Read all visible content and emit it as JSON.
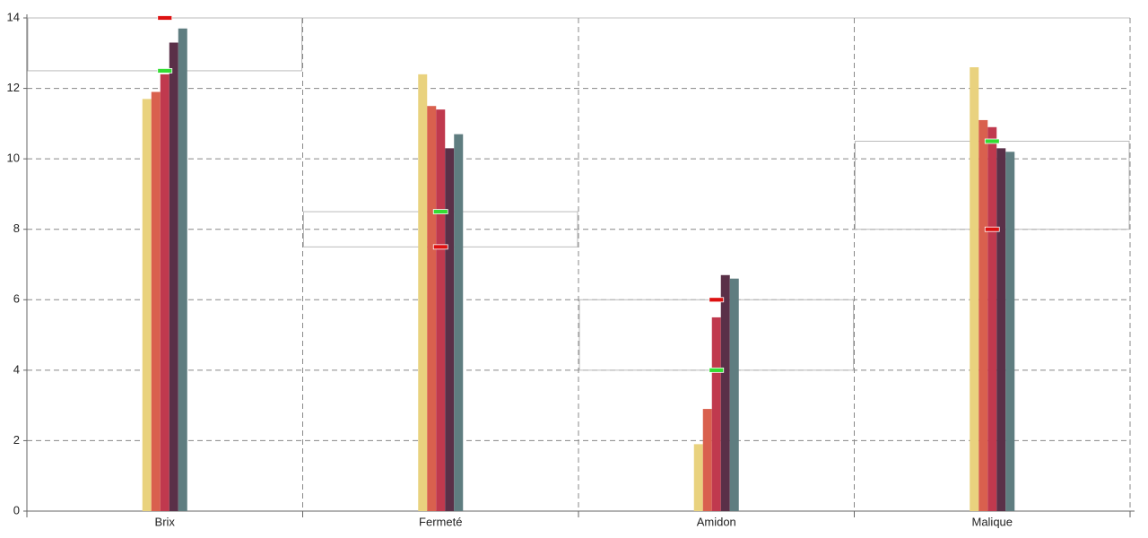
{
  "chart_data": {
    "type": "bar",
    "categories": [
      "Brix",
      "Fermeté",
      "Amidon",
      "Malique"
    ],
    "series": [
      {
        "color": "#e9d27e",
        "values": [
          11.7,
          12.4,
          1.9,
          12.6
        ]
      },
      {
        "color": "#d9604e",
        "values": [
          11.9,
          11.5,
          2.9,
          11.1
        ]
      },
      {
        "color": "#c0394e",
        "values": [
          12.4,
          11.4,
          5.5,
          10.9
        ]
      },
      {
        "color": "#5a3048",
        "values": [
          13.3,
          10.3,
          6.7,
          10.3
        ]
      },
      {
        "color": "#5f7d80",
        "values": [
          13.7,
          10.7,
          6.6,
          10.2
        ]
      }
    ],
    "markers": [
      {
        "color": "#33dd33",
        "values": [
          12.5,
          8.5,
          4,
          10.5
        ]
      },
      {
        "color": "#dd1111",
        "values": [
          14,
          7.5,
          6,
          8
        ]
      }
    ],
    "ylim": [
      0,
      14
    ],
    "yticks": [
      0,
      2,
      4,
      6,
      8,
      10,
      12,
      14
    ],
    "grid": true
  }
}
